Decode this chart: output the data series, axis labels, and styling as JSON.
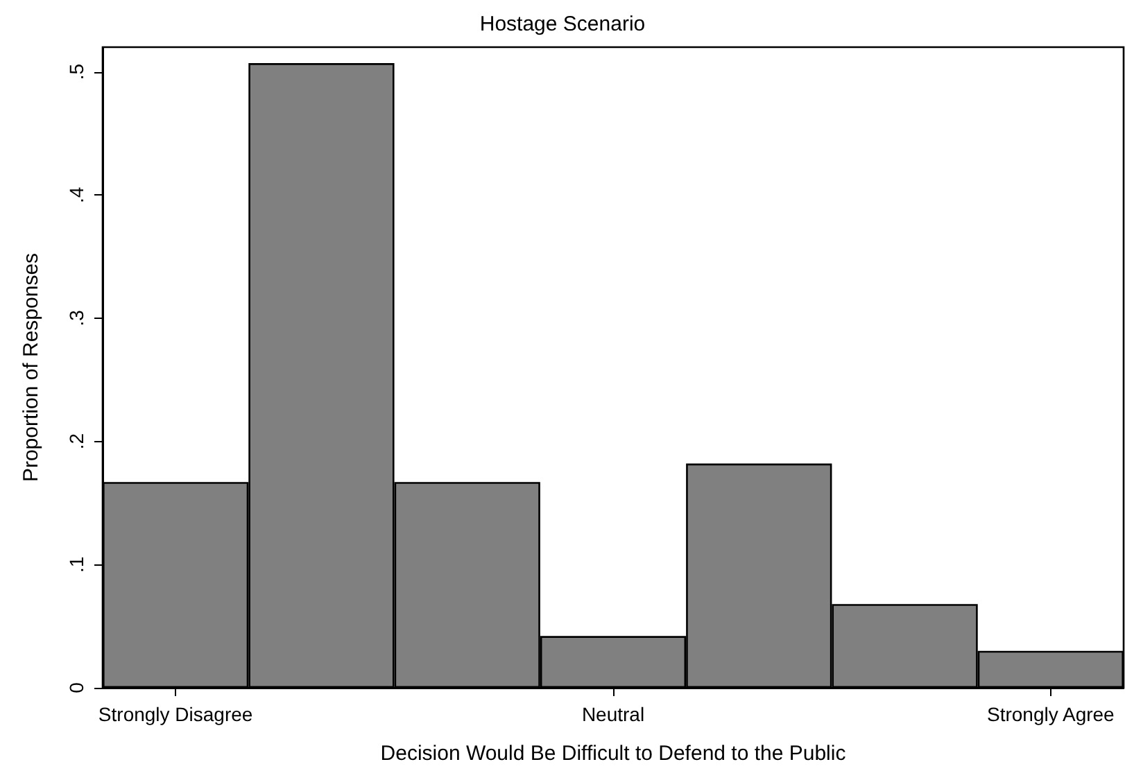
{
  "chart_data": {
    "type": "bar",
    "title": "Hostage Scenario",
    "xlabel": "Decision Would Be Difficult to Defend to the Public",
    "ylabel": "Proportion of Responses",
    "categories": [
      "Strongly Disagree",
      null,
      null,
      "Neutral",
      null,
      null,
      "Strongly Agree"
    ],
    "values": [
      0.167,
      0.507,
      0.167,
      0.042,
      0.182,
      0.068,
      0.03
    ],
    "color": "#808080",
    "ylim": [
      0,
      0.52
    ],
    "yticks": [
      {
        "value": 0,
        "label": "0"
      },
      {
        "value": 0.1,
        "label": ".1"
      },
      {
        "value": 0.2,
        "label": ".2"
      },
      {
        "value": 0.3,
        "label": ".3"
      },
      {
        "value": 0.4,
        "label": ".4"
      },
      {
        "value": 0.5,
        "label": ".5"
      }
    ],
    "grid": false
  }
}
